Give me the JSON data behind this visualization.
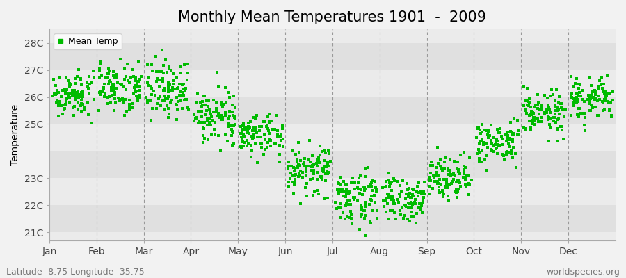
{
  "title": "Monthly Mean Temperatures 1901  -  2009",
  "ylabel": "Temperature",
  "xlabel_labels": [
    "Jan",
    "Feb",
    "Mar",
    "Apr",
    "May",
    "Jun",
    "Jul",
    "Aug",
    "Sep",
    "Oct",
    "Nov",
    "Dec"
  ],
  "ytick_labels": [
    "21C",
    "22C",
    "23C",
    "25C",
    "26C",
    "27C",
    "28C"
  ],
  "ytick_values": [
    21,
    22,
    23,
    25,
    26,
    27,
    28
  ],
  "ylim": [
    20.7,
    28.5
  ],
  "marker_color": "#00bb00",
  "marker_size": 3.5,
  "legend_label": "Mean Temp",
  "footnote_left": "Latitude -8.75 Longitude -35.75",
  "footnote_right": "worldspecies.org",
  "bg_color": "#f2f2f2",
  "plot_bg_color": "#ebebeb",
  "band_dark": "#e0e0e0",
  "band_light": "#ebebeb",
  "monthly_means": [
    26.1,
    26.4,
    26.3,
    25.3,
    24.6,
    23.3,
    22.3,
    22.2,
    23.1,
    24.3,
    25.4,
    25.9
  ],
  "monthly_stds": [
    0.4,
    0.48,
    0.55,
    0.45,
    0.42,
    0.45,
    0.48,
    0.42,
    0.38,
    0.4,
    0.4,
    0.4
  ],
  "n_years": 109,
  "dashed_line_color": "#999999",
  "title_fontsize": 15,
  "tick_fontsize": 10,
  "footnote_fontsize": 9,
  "xlim": [
    0,
    12
  ],
  "xtick_positions": [
    0.0,
    1.0,
    2.0,
    3.0,
    4.0,
    5.0,
    6.0,
    7.0,
    8.0,
    9.0,
    10.0,
    11.0
  ],
  "vline_positions": [
    1.0,
    2.0,
    3.0,
    4.0,
    5.0,
    6.0,
    7.0,
    8.0,
    9.0,
    10.0,
    11.0
  ]
}
